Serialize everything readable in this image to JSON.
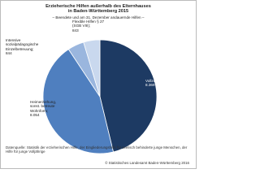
{
  "chart_data": {
    "type": "pie",
    "title": [
      "Erzieherische Hilfen außerhalb des Elternhauses",
      "in Baden-Württemberg 2015"
    ],
    "subtitle": "– Beendete und am 31. Dezember andauernde Hilfen –",
    "categories": [
      "Vollzeitpflege",
      "Heimerziehung, sonst. betreute Wohnform",
      "Intensive sozialpädagogische Einzelbetreuung",
      "Flexible Hilfen § 27 (SGB VIII)"
    ],
    "values": [
      8369,
      8054,
      844,
      843
    ],
    "value_labels": [
      "8.369",
      "8.054",
      "844",
      "843"
    ],
    "colors": [
      "#1d3a63",
      "#4f7fbf",
      "#9ab6de",
      "#c9d8ee"
    ],
    "label_separator": ";",
    "source": "Datenquelle: Statistik der erzieherischen Hilfe, der Eingliederungshilfe für seelisch behinderte junge Menschen, der Hilfe für junge Volljährige",
    "copyright": "© Statistisches Landesamt Baden-Württemberg 2016"
  }
}
